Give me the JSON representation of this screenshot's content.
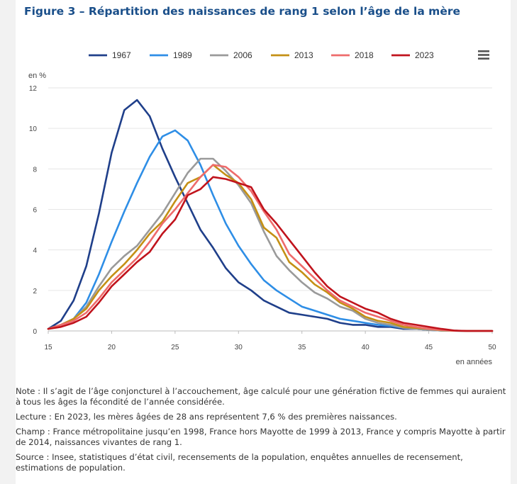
{
  "title": "Figure 3 – Répartition des naissances de rang 1 selon l’âge de la mère",
  "menu_icon": "hamburger-menu-icon",
  "notes": [
    "Note : Il s’agit de l’âge conjoncturel à l’accouchement, âge calculé pour une génération fictive de femmes qui auraient à tous les âges la fécondité de l’année considérée.",
    "Lecture : En 2023, les mères âgées de 28 ans représentent 7,6 % des premières naissances.",
    "Champ : France métropolitaine jusqu’en 1998, France hors Mayotte de 1999 à 2013, France y compris Mayotte à partir de 2014, naissances vivantes de rang 1.",
    "Source : Insee, statistiques d’état civil, recensements de la population, enquêtes annuelles de recensement, estimations de population."
  ],
  "chart_data": {
    "type": "line",
    "title": "Figure 3 – Répartition des naissances de rang 1 selon l’âge de la mère",
    "xlabel": "en années",
    "ylabel": "en %",
    "xlim": [
      15,
      50
    ],
    "ylim": [
      0,
      12
    ],
    "xticks": [
      15,
      20,
      25,
      30,
      35,
      40,
      45,
      50
    ],
    "yticks": [
      0,
      2,
      4,
      6,
      8,
      10,
      12
    ],
    "grid": true,
    "legend_position": "top",
    "x": [
      15,
      16,
      17,
      18,
      19,
      20,
      21,
      22,
      23,
      24,
      25,
      26,
      27,
      28,
      29,
      30,
      31,
      32,
      33,
      34,
      35,
      36,
      37,
      38,
      39,
      40,
      41,
      42,
      43,
      44,
      45,
      46,
      47,
      48,
      49,
      50
    ],
    "series": [
      {
        "name": "1967",
        "color": "#1f3f8a",
        "values": [
          0.1,
          0.5,
          1.5,
          3.2,
          5.8,
          8.8,
          10.9,
          11.4,
          10.6,
          9.0,
          7.6,
          6.3,
          5.0,
          4.1,
          3.1,
          2.4,
          2.0,
          1.5,
          1.2,
          0.9,
          0.8,
          0.7,
          0.6,
          0.4,
          0.3,
          0.3,
          0.2,
          0.2,
          0.1,
          0.1,
          0.05,
          0.02,
          0.01,
          0,
          0,
          0
        ]
      },
      {
        "name": "1989",
        "color": "#2e8ee6",
        "values": [
          0.1,
          0.3,
          0.6,
          1.4,
          2.8,
          4.4,
          5.9,
          7.3,
          8.6,
          9.6,
          9.9,
          9.4,
          8.2,
          6.7,
          5.3,
          4.2,
          3.3,
          2.5,
          2.0,
          1.6,
          1.2,
          1.0,
          0.8,
          0.6,
          0.5,
          0.4,
          0.3,
          0.25,
          0.15,
          0.1,
          0.05,
          0.02,
          0.01,
          0,
          0,
          0
        ]
      },
      {
        "name": "2006",
        "color": "#9a9a9a",
        "values": [
          0.1,
          0.3,
          0.6,
          1.2,
          2.2,
          3.1,
          3.7,
          4.2,
          5.0,
          5.8,
          6.8,
          7.8,
          8.5,
          8.5,
          7.9,
          7.2,
          6.3,
          4.9,
          3.7,
          3.0,
          2.4,
          1.9,
          1.6,
          1.2,
          1.0,
          0.6,
          0.4,
          0.3,
          0.15,
          0.1,
          0.05,
          0.02,
          0.01,
          0,
          0,
          0
        ]
      },
      {
        "name": "2013",
        "color": "#c49015",
        "values": [
          0.1,
          0.3,
          0.6,
          1.1,
          2.0,
          2.7,
          3.3,
          4.0,
          4.8,
          5.4,
          6.4,
          7.3,
          7.6,
          8.2,
          7.7,
          7.3,
          6.5,
          5.1,
          4.6,
          3.4,
          2.9,
          2.3,
          1.9,
          1.4,
          1.1,
          0.7,
          0.5,
          0.4,
          0.2,
          0.15,
          0.1,
          0.03,
          0.01,
          0,
          0,
          0
        ]
      },
      {
        "name": "2018",
        "color": "#ee6b6b",
        "values": [
          0.1,
          0.3,
          0.5,
          0.9,
          1.6,
          2.4,
          3.0,
          3.6,
          4.4,
          5.3,
          6.0,
          6.8,
          7.6,
          8.2,
          8.1,
          7.6,
          6.9,
          5.9,
          5.0,
          3.8,
          3.2,
          2.6,
          2.0,
          1.5,
          1.2,
          0.9,
          0.7,
          0.5,
          0.3,
          0.2,
          0.1,
          0.05,
          0.01,
          0,
          0,
          0
        ]
      },
      {
        "name": "2023",
        "color": "#c0131c",
        "values": [
          0.1,
          0.2,
          0.4,
          0.7,
          1.4,
          2.2,
          2.8,
          3.4,
          3.9,
          4.8,
          5.5,
          6.7,
          7.0,
          7.6,
          7.5,
          7.3,
          7.1,
          6.0,
          5.3,
          4.5,
          3.7,
          2.9,
          2.2,
          1.7,
          1.4,
          1.1,
          0.9,
          0.6,
          0.4,
          0.3,
          0.2,
          0.1,
          0.02,
          0,
          0,
          0
        ]
      }
    ]
  }
}
